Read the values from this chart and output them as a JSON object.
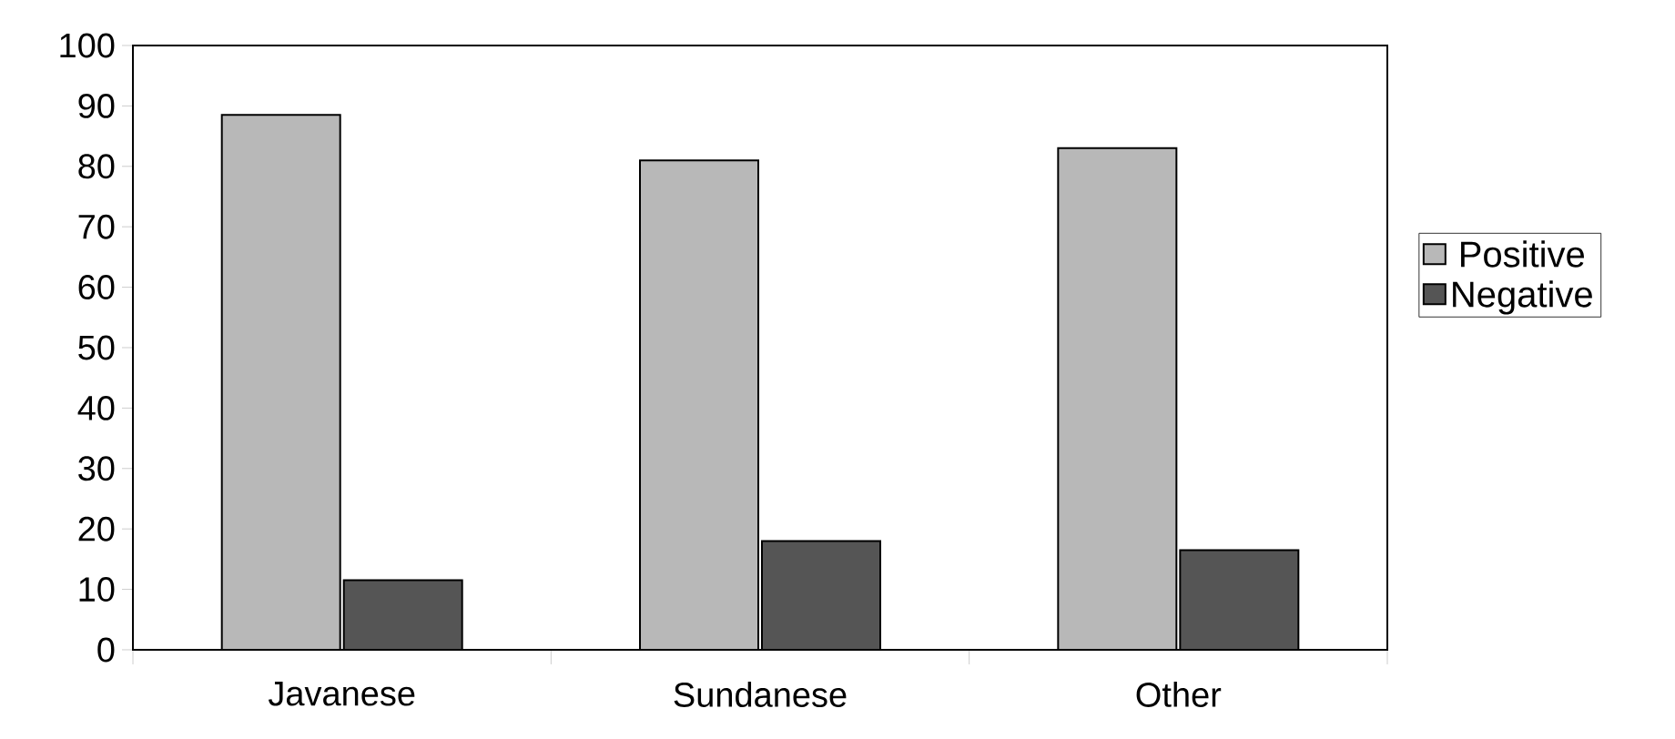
{
  "chart_data": {
    "type": "bar",
    "categories": [
      "Javanese",
      "Sundanese",
      "Other"
    ],
    "series": [
      {
        "name": "Positive",
        "color": "#b8b8b8",
        "values": [
          88.5,
          81,
          83
        ]
      },
      {
        "name": "Negative",
        "color": "#555555",
        "values": [
          11.5,
          18,
          16.5
        ]
      }
    ],
    "ylim": [
      0,
      100
    ],
    "yticks": [
      0,
      10,
      20,
      30,
      40,
      50,
      60,
      70,
      80,
      90,
      100
    ],
    "grid": false,
    "legend": "right"
  }
}
